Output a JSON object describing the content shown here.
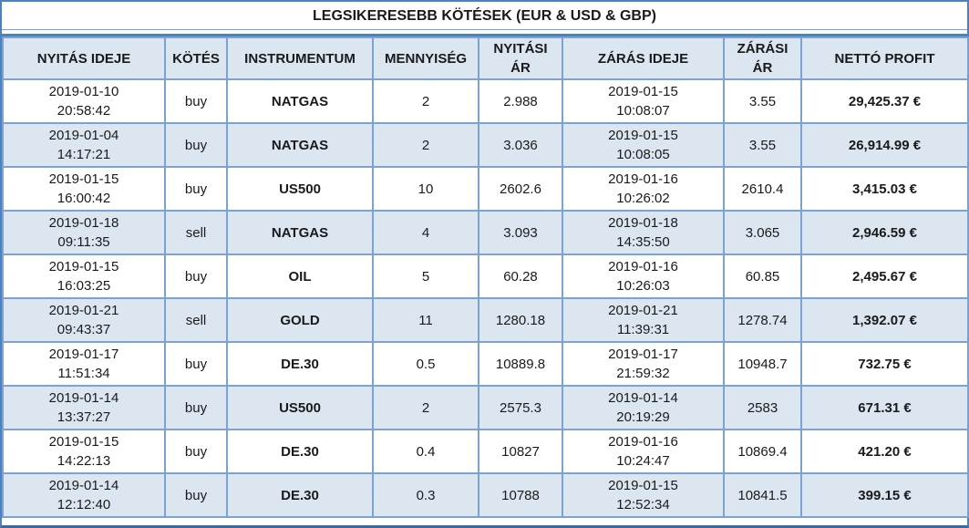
{
  "title": "LEGSIKERESEBB KÖTÉSEK (EUR & USD & GBP)",
  "columns": [
    "NYITÁS IDEJE",
    "KÖTÉS",
    "INSTRUMENTUM",
    "MENNYISÉG",
    "NYITÁSI ÁR",
    "ZÁRÁS IDEJE",
    "ZÁRÁSI ÁR",
    "NETTÓ PROFIT"
  ],
  "rows": [
    {
      "open_time": "2019-01-10\n20:58:42",
      "side": "buy",
      "instrument": "NATGAS",
      "quantity": "2",
      "open_price": "2.988",
      "close_time": "2019-01-15\n10:08:07",
      "close_price": "3.55",
      "net_profit": "29,425.37 €"
    },
    {
      "open_time": "2019-01-04\n14:17:21",
      "side": "buy",
      "instrument": "NATGAS",
      "quantity": "2",
      "open_price": "3.036",
      "close_time": "2019-01-15\n10:08:05",
      "close_price": "3.55",
      "net_profit": "26,914.99 €"
    },
    {
      "open_time": "2019-01-15\n16:00:42",
      "side": "buy",
      "instrument": "US500",
      "quantity": "10",
      "open_price": "2602.6",
      "close_time": "2019-01-16\n10:26:02",
      "close_price": "2610.4",
      "net_profit": "3,415.03 €"
    },
    {
      "open_time": "2019-01-18\n09:11:35",
      "side": "sell",
      "instrument": "NATGAS",
      "quantity": "4",
      "open_price": "3.093",
      "close_time": "2019-01-18\n14:35:50",
      "close_price": "3.065",
      "net_profit": "2,946.59 €"
    },
    {
      "open_time": "2019-01-15\n16:03:25",
      "side": "buy",
      "instrument": "OIL",
      "quantity": "5",
      "open_price": "60.28",
      "close_time": "2019-01-16\n10:26:03",
      "close_price": "60.85",
      "net_profit": "2,495.67 €"
    },
    {
      "open_time": "2019-01-21\n09:43:37",
      "side": "sell",
      "instrument": "GOLD",
      "quantity": "11",
      "open_price": "1280.18",
      "close_time": "2019-01-21\n11:39:31",
      "close_price": "1278.74",
      "net_profit": "1,392.07 €"
    },
    {
      "open_time": "2019-01-17\n11:51:34",
      "side": "buy",
      "instrument": "DE.30",
      "quantity": "0.5",
      "open_price": "10889.8",
      "close_time": "2019-01-17\n21:59:32",
      "close_price": "10948.7",
      "net_profit": "732.75 €"
    },
    {
      "open_time": "2019-01-14\n13:37:27",
      "side": "buy",
      "instrument": "US500",
      "quantity": "2",
      "open_price": "2575.3",
      "close_time": "2019-01-14\n20:19:29",
      "close_price": "2583",
      "net_profit": "671.31 €"
    },
    {
      "open_time": "2019-01-15\n14:22:13",
      "side": "buy",
      "instrument": "DE.30",
      "quantity": "0.4",
      "open_price": "10827",
      "close_time": "2019-01-16\n10:24:47",
      "close_price": "10869.4",
      "net_profit": "421.20 €"
    },
    {
      "open_time": "2019-01-14\n12:12:40",
      "side": "buy",
      "instrument": "DE.30",
      "quantity": "0.3",
      "open_price": "10788",
      "close_time": "2019-01-15\n12:52:34",
      "close_price": "10841.5",
      "net_profit": "399.15 €"
    }
  ],
  "colors": {
    "grid_line": "#7aa2d4",
    "banded_row_bg": "#dce6f1",
    "header_bg": "#dce6f1",
    "accent_border": "#4f81bd",
    "text": "#1a1a1a"
  }
}
